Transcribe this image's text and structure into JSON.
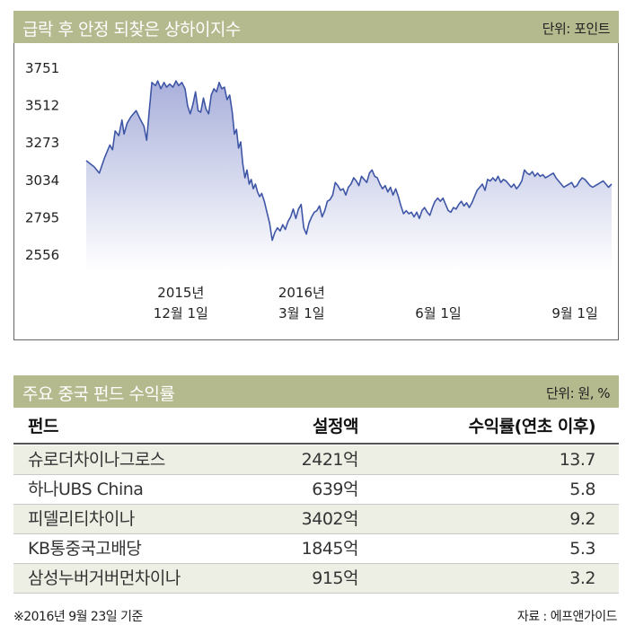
{
  "chart_header": {
    "title": "급락 후 안정 되찾은 상하이지수",
    "unit": "단위: 포인트"
  },
  "chart_data": {
    "type": "area",
    "title": "급락 후 안정 되찾은 상하이지수",
    "ylabel": "",
    "xlabel": "",
    "yticks": [
      3751,
      3512,
      3273,
      3034,
      2795,
      2556
    ],
    "ylim": [
      2490,
      3800
    ],
    "x_range": [
      0,
      100
    ],
    "grid": false,
    "xtick_labels": [
      {
        "x": 18,
        "line1": "2015년",
        "line2": "12월  1일"
      },
      {
        "x": 41,
        "line1": "2016년",
        "line2": "3월  1일"
      },
      {
        "x": 67,
        "line1": "",
        "line2": "6월  1일"
      },
      {
        "x": 93,
        "line1": "",
        "line2": "9월  1일"
      }
    ],
    "series": [
      {
        "values": [
          [
            0.0,
            3160
          ],
          [
            1.5,
            3120
          ],
          [
            2.5,
            3080
          ],
          [
            3.5,
            3180
          ],
          [
            4.5,
            3260
          ],
          [
            5.0,
            3230
          ],
          [
            5.5,
            3350
          ],
          [
            6.2,
            3320
          ],
          [
            6.8,
            3420
          ],
          [
            7.2,
            3330
          ],
          [
            7.8,
            3400
          ],
          [
            8.5,
            3440
          ],
          [
            9.5,
            3480
          ],
          [
            10.2,
            3430
          ],
          [
            11.0,
            3380
          ],
          [
            11.5,
            3290
          ],
          [
            12.0,
            3480
          ],
          [
            12.5,
            3660
          ],
          [
            13.2,
            3640
          ],
          [
            13.6,
            3670
          ],
          [
            14.2,
            3620
          ],
          [
            14.8,
            3660
          ],
          [
            15.3,
            3630
          ],
          [
            15.9,
            3650
          ],
          [
            16.5,
            3630
          ],
          [
            17.1,
            3670
          ],
          [
            17.6,
            3640
          ],
          [
            18.2,
            3660
          ],
          [
            18.8,
            3620
          ],
          [
            19.3,
            3510
          ],
          [
            19.8,
            3460
          ],
          [
            20.3,
            3520
          ],
          [
            20.8,
            3600
          ],
          [
            21.3,
            3480
          ],
          [
            21.8,
            3470
          ],
          [
            22.3,
            3560
          ],
          [
            22.8,
            3490
          ],
          [
            23.3,
            3460
          ],
          [
            23.8,
            3580
          ],
          [
            24.3,
            3620
          ],
          [
            24.8,
            3600
          ],
          [
            25.3,
            3660
          ],
          [
            25.8,
            3620
          ],
          [
            26.3,
            3630
          ],
          [
            26.8,
            3550
          ],
          [
            27.3,
            3580
          ],
          [
            27.8,
            3470
          ],
          [
            28.2,
            3330
          ],
          [
            28.6,
            3360
          ],
          [
            29.0,
            3240
          ],
          [
            29.4,
            3280
          ],
          [
            29.8,
            3140
          ],
          [
            30.2,
            3050
          ],
          [
            30.6,
            3100
          ],
          [
            31.0,
            3010
          ],
          [
            31.4,
            3040
          ],
          [
            31.8,
            2980
          ],
          [
            32.2,
            3010
          ],
          [
            32.6,
            2960
          ],
          [
            33.0,
            2930
          ],
          [
            33.4,
            2950
          ],
          [
            33.9,
            2900
          ],
          [
            34.4,
            2830
          ],
          [
            34.9,
            2760
          ],
          [
            35.4,
            2650
          ],
          [
            35.9,
            2700
          ],
          [
            36.4,
            2730
          ],
          [
            36.9,
            2710
          ],
          [
            37.4,
            2750
          ],
          [
            37.9,
            2720
          ],
          [
            38.4,
            2770
          ],
          [
            38.9,
            2800
          ],
          [
            39.4,
            2850
          ],
          [
            39.9,
            2790
          ],
          [
            40.4,
            2850
          ],
          [
            40.9,
            2880
          ],
          [
            41.4,
            2730
          ],
          [
            41.9,
            2690
          ],
          [
            42.4,
            2760
          ],
          [
            42.9,
            2800
          ],
          [
            43.4,
            2830
          ],
          [
            43.9,
            2840
          ],
          [
            44.4,
            2870
          ],
          [
            44.9,
            2800
          ],
          [
            45.4,
            2840
          ],
          [
            45.9,
            2900
          ],
          [
            46.4,
            2910
          ],
          [
            46.9,
            2940
          ],
          [
            47.4,
            3020
          ],
          [
            47.9,
            3000
          ],
          [
            48.4,
            2970
          ],
          [
            48.9,
            2980
          ],
          [
            49.4,
            2940
          ],
          [
            49.9,
            2990
          ],
          [
            50.4,
            3010
          ],
          [
            50.9,
            3050
          ],
          [
            51.4,
            3030
          ],
          [
            51.9,
            3000
          ],
          [
            52.4,
            3060
          ],
          [
            52.9,
            3040
          ],
          [
            53.4,
            3020
          ],
          [
            53.9,
            3080
          ],
          [
            54.4,
            3100
          ],
          [
            54.9,
            3060
          ],
          [
            55.4,
            3050
          ],
          [
            55.9,
            3010
          ],
          [
            56.4,
            2980
          ],
          [
            56.9,
            3000
          ],
          [
            57.4,
            2960
          ],
          [
            57.9,
            2990
          ],
          [
            58.4,
            2940
          ],
          [
            58.9,
            2980
          ],
          [
            59.4,
            2930
          ],
          [
            59.9,
            2870
          ],
          [
            60.4,
            2820
          ],
          [
            60.9,
            2840
          ],
          [
            61.4,
            2820
          ],
          [
            61.9,
            2830
          ],
          [
            62.4,
            2800
          ],
          [
            62.9,
            2830
          ],
          [
            63.4,
            2790
          ],
          [
            63.9,
            2840
          ],
          [
            64.4,
            2860
          ],
          [
            64.9,
            2830
          ],
          [
            65.4,
            2810
          ],
          [
            65.9,
            2860
          ],
          [
            66.4,
            2900
          ],
          [
            66.9,
            2920
          ],
          [
            67.4,
            2900
          ],
          [
            67.9,
            2920
          ],
          [
            68.4,
            2880
          ],
          [
            68.9,
            2840
          ],
          [
            69.4,
            2830
          ],
          [
            69.9,
            2860
          ],
          [
            70.4,
            2850
          ],
          [
            70.9,
            2880
          ],
          [
            71.4,
            2900
          ],
          [
            71.9,
            2870
          ],
          [
            72.4,
            2890
          ],
          [
            72.9,
            2860
          ],
          [
            73.4,
            2890
          ],
          [
            73.9,
            2930
          ],
          [
            74.4,
            2970
          ],
          [
            74.9,
            2990
          ],
          [
            75.4,
            3010
          ],
          [
            75.9,
            2970
          ],
          [
            76.4,
            3040
          ],
          [
            76.9,
            3030
          ],
          [
            77.4,
            3050
          ],
          [
            77.9,
            3030
          ],
          [
            78.4,
            3060
          ],
          [
            78.9,
            3020
          ],
          [
            79.4,
            3040
          ],
          [
            79.9,
            3030
          ],
          [
            80.4,
            3010
          ],
          [
            80.9,
            2990
          ],
          [
            81.4,
            3010
          ],
          [
            81.9,
            2980
          ],
          [
            82.4,
            3000
          ],
          [
            82.9,
            3030
          ],
          [
            83.4,
            3100
          ],
          [
            83.9,
            3080
          ],
          [
            84.4,
            3070
          ],
          [
            84.9,
            3090
          ],
          [
            85.4,
            3060
          ],
          [
            85.9,
            3080
          ],
          [
            86.4,
            3060
          ],
          [
            86.9,
            3070
          ],
          [
            87.4,
            3050
          ],
          [
            87.9,
            3060
          ],
          [
            88.4,
            3070
          ],
          [
            88.9,
            3080
          ],
          [
            89.4,
            3050
          ],
          [
            89.9,
            3030
          ],
          [
            90.4,
            3010
          ],
          [
            90.9,
            2990
          ],
          [
            91.4,
            3000
          ],
          [
            91.9,
            3010
          ],
          [
            92.4,
            3020
          ],
          [
            92.9,
            2990
          ],
          [
            93.4,
            3000
          ],
          [
            93.9,
            3030
          ],
          [
            94.4,
            3050
          ],
          [
            94.9,
            3040
          ],
          [
            95.4,
            3020
          ],
          [
            95.9,
            3000
          ],
          [
            96.4,
            2990
          ],
          [
            96.9,
            3000
          ],
          [
            97.4,
            3010
          ],
          [
            97.9,
            3020
          ],
          [
            98.4,
            3030
          ],
          [
            98.9,
            3010
          ],
          [
            99.4,
            2990
          ],
          [
            100.0,
            3010
          ]
        ]
      }
    ],
    "colors": {
      "line": "#3f56a6",
      "fill_top": "#a9b0db",
      "fill_bottom": "#ffffff"
    }
  },
  "table_header": {
    "title": "주요 중국 펀드 수익률",
    "unit": "단위: 원, %"
  },
  "table": {
    "columns": [
      "펀드",
      "설정액",
      "수익률(연초 이후)"
    ],
    "rows": [
      [
        "슈로더차이나그로스",
        "2421억",
        "13.7"
      ],
      [
        "하나UBS China",
        "639억",
        "5.8"
      ],
      [
        "피델리티차이나",
        "3402억",
        "9.2"
      ],
      [
        "KB통중국고배당",
        "1845억",
        "5.3"
      ],
      [
        "삼성누버거버먼차이나",
        "915억",
        "3.2"
      ]
    ]
  },
  "footnote": "※2016년 9월 23일 기준",
  "source": "자료 : 에프앤가이드"
}
